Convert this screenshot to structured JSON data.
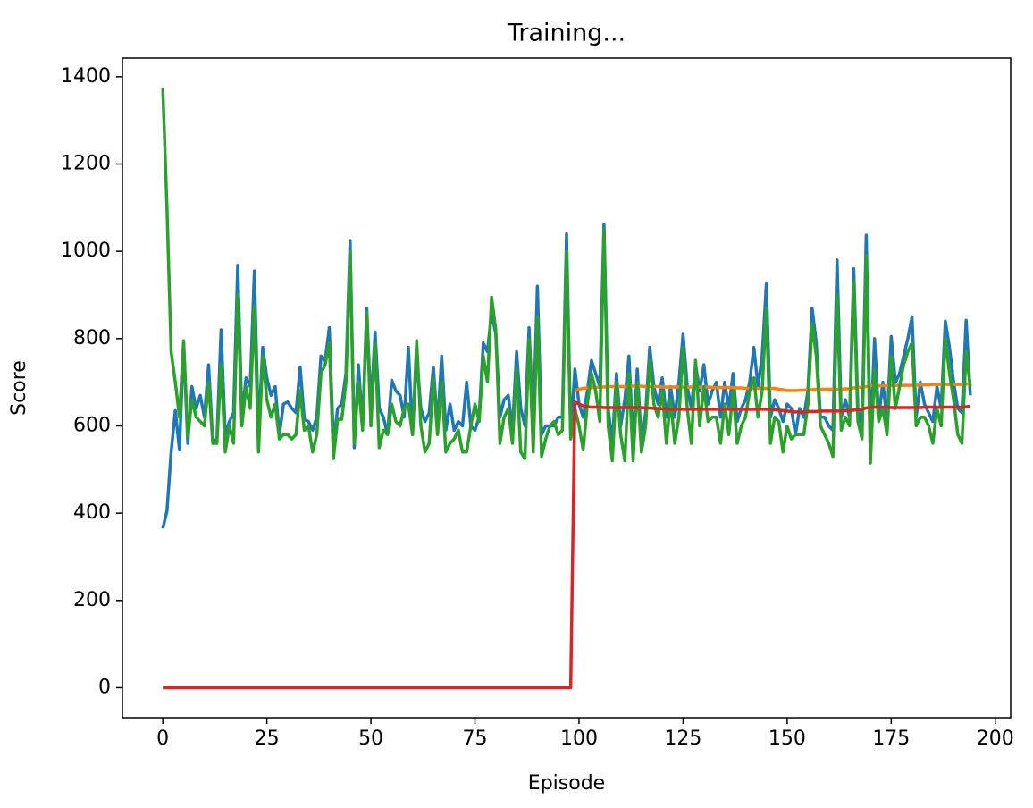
{
  "chart_data": {
    "type": "line",
    "title": "Training...",
    "x_label": "Episode",
    "y_label": "Score",
    "x": [
      0,
      1,
      2,
      3,
      4,
      5,
      6,
      7,
      8,
      9,
      10,
      11,
      12,
      13,
      14,
      15,
      16,
      17,
      18,
      19,
      20,
      21,
      22,
      23,
      24,
      25,
      26,
      27,
      28,
      29,
      30,
      31,
      32,
      33,
      34,
      35,
      36,
      37,
      38,
      39,
      40,
      41,
      42,
      43,
      44,
      45,
      46,
      47,
      48,
      49,
      50,
      51,
      52,
      53,
      54,
      55,
      56,
      57,
      58,
      59,
      60,
      61,
      62,
      63,
      64,
      65,
      66,
      67,
      68,
      69,
      70,
      71,
      72,
      73,
      74,
      75,
      76,
      77,
      78,
      79,
      80,
      81,
      82,
      83,
      84,
      85,
      86,
      87,
      88,
      89,
      90,
      91,
      92,
      93,
      94,
      95,
      96,
      97,
      98,
      99,
      100,
      101,
      102,
      103,
      104,
      105,
      106,
      107,
      108,
      109,
      110,
      111,
      112,
      113,
      114,
      115,
      116,
      117,
      118,
      119,
      120,
      121,
      122,
      123,
      124,
      125,
      126,
      127,
      128,
      129,
      130,
      131,
      132,
      133,
      134,
      135,
      136,
      137,
      138,
      139,
      140,
      141,
      142,
      143,
      144,
      145,
      146,
      147,
      148,
      149,
      150,
      151,
      152,
      153,
      154,
      155,
      156,
      157,
      158,
      159,
      160,
      161,
      162,
      163,
      164,
      165,
      166,
      167,
      168,
      169,
      170,
      171,
      172,
      173,
      174,
      175,
      176,
      177,
      178,
      179,
      180,
      181,
      182,
      183,
      184,
      185,
      186,
      187,
      188,
      189,
      190,
      191,
      192,
      193,
      194
    ],
    "series": [
      {
        "color": "#1f77b4",
        "values": [
          365,
          405,
          540,
          635,
          545,
          790,
          560,
          690,
          640,
          670,
          620,
          740,
          565,
          570,
          820,
          580,
          610,
          630,
          968,
          620,
          710,
          690,
          955,
          580,
          780,
          710,
          670,
          690,
          580,
          650,
          655,
          640,
          630,
          735,
          615,
          610,
          590,
          620,
          760,
          750,
          825,
          560,
          640,
          650,
          720,
          1025,
          550,
          740,
          600,
          870,
          640,
          815,
          640,
          620,
          580,
          705,
          680,
          670,
          620,
          780,
          580,
          760,
          640,
          610,
          630,
          735,
          600,
          760,
          590,
          650,
          590,
          610,
          600,
          700,
          600,
          590,
          620,
          790,
          770,
          860,
          810,
          620,
          660,
          670,
          590,
          770,
          640,
          600,
          825,
          600,
          920,
          580,
          600,
          600,
          600,
          620,
          620,
          1040,
          580,
          730,
          650,
          620,
          680,
          750,
          720,
          690,
          1062,
          640,
          560,
          720,
          600,
          660,
          760,
          560,
          730,
          560,
          630,
          780,
          690,
          650,
          710,
          620,
          690,
          620,
          700,
          810,
          690,
          640,
          740,
          680,
          740,
          650,
          680,
          700,
          620,
          700,
          640,
          720,
          610,
          640,
          660,
          700,
          780,
          690,
          760,
          925,
          620,
          660,
          640,
          610,
          650,
          640,
          580,
          640,
          620,
          680,
          870,
          790,
          620,
          620,
          600,
          590,
          980,
          620,
          660,
          620,
          960,
          640,
          600,
          1037,
          560,
          800,
          620,
          700,
          610,
          805,
          700,
          720,
          760,
          800,
          850,
          620,
          700,
          650,
          630,
          610,
          690,
          640,
          840,
          780,
          700,
          640,
          630,
          842,
          670
        ]
      },
      {
        "color": "#ff7f0e",
        "values": [
          null,
          null,
          null,
          null,
          null,
          null,
          null,
          null,
          null,
          null,
          null,
          null,
          null,
          null,
          null,
          null,
          null,
          null,
          null,
          null,
          null,
          null,
          null,
          null,
          null,
          null,
          null,
          null,
          null,
          null,
          null,
          null,
          null,
          null,
          null,
          null,
          null,
          null,
          null,
          null,
          null,
          null,
          null,
          null,
          null,
          null,
          null,
          null,
          null,
          null,
          null,
          null,
          null,
          null,
          null,
          null,
          null,
          null,
          null,
          null,
          null,
          null,
          null,
          null,
          null,
          null,
          null,
          null,
          null,
          null,
          null,
          null,
          null,
          null,
          null,
          null,
          null,
          null,
          null,
          null,
          null,
          null,
          null,
          null,
          null,
          null,
          null,
          null,
          null,
          null,
          null,
          null,
          null,
          null,
          null,
          null,
          null,
          null,
          null,
          680,
          684,
          686,
          687,
          688,
          688,
          689,
          689,
          690,
          690,
          690,
          690,
          690,
          691,
          691,
          691,
          691,
          690,
          690,
          690,
          690,
          689,
          689,
          689,
          689,
          689,
          689,
          689,
          689,
          689,
          689,
          689,
          689,
          688,
          688,
          688,
          688,
          688,
          688,
          687,
          687,
          686,
          686,
          686,
          686,
          686,
          686,
          686,
          686,
          684,
          683,
          681,
          681,
          681,
          682,
          682,
          683,
          683,
          684,
          684,
          684,
          684,
          684,
          684,
          684,
          685,
          685,
          687,
          688,
          689,
          690,
          692,
          692,
          692,
          692,
          692,
          693,
          693,
          693,
          693,
          693,
          693,
          693,
          694,
          694,
          694,
          695,
          695,
          695,
          695,
          695,
          695,
          695,
          695,
          696,
          696
        ]
      },
      {
        "color": "#2ca02c",
        "values": [
          1374,
          1100,
          770,
          700,
          620,
          795,
          575,
          660,
          620,
          610,
          600,
          700,
          560,
          560,
          740,
          540,
          600,
          560,
          900,
          600,
          690,
          640,
          875,
          540,
          760,
          660,
          620,
          650,
          570,
          580,
          580,
          570,
          580,
          680,
          590,
          600,
          540,
          580,
          720,
          740,
          790,
          525,
          615,
          615,
          700,
          1000,
          560,
          700,
          590,
          860,
          600,
          790,
          550,
          590,
          580,
          650,
          610,
          600,
          640,
          650,
          580,
          795,
          600,
          540,
          560,
          710,
          580,
          700,
          540,
          560,
          570,
          590,
          540,
          540,
          600,
          650,
          610,
          760,
          700,
          895,
          820,
          560,
          620,
          640,
          560,
          730,
          540,
          525,
          800,
          540,
          850,
          530,
          570,
          600,
          610,
          580,
          590,
          1000,
          570,
          640,
          600,
          545,
          650,
          720,
          680,
          610,
          1050,
          600,
          520,
          700,
          580,
          520,
          720,
          520,
          700,
          540,
          600,
          750,
          650,
          620,
          680,
          560,
          660,
          560,
          620,
          780,
          640,
          560,
          750,
          600,
          690,
          610,
          620,
          620,
          560,
          650,
          580,
          680,
          560,
          600,
          620,
          680,
          710,
          620,
          680,
          870,
          560,
          620,
          610,
          540,
          600,
          570,
          580,
          580,
          580,
          650,
          835,
          760,
          600,
          580,
          560,
          530,
          900,
          590,
          620,
          600,
          930,
          610,
          570,
          990,
          515,
          730,
          610,
          640,
          580,
          760,
          640,
          690,
          740,
          770,
          790,
          600,
          620,
          620,
          600,
          560,
          640,
          600,
          800,
          720,
          660,
          580,
          560,
          770,
          690
        ]
      },
      {
        "color": "#d62728",
        "values": [
          0,
          0,
          0,
          0,
          0,
          0,
          0,
          0,
          0,
          0,
          0,
          0,
          0,
          0,
          0,
          0,
          0,
          0,
          0,
          0,
          0,
          0,
          0,
          0,
          0,
          0,
          0,
          0,
          0,
          0,
          0,
          0,
          0,
          0,
          0,
          0,
          0,
          0,
          0,
          0,
          0,
          0,
          0,
          0,
          0,
          0,
          0,
          0,
          0,
          0,
          0,
          0,
          0,
          0,
          0,
          0,
          0,
          0,
          0,
          0,
          0,
          0,
          0,
          0,
          0,
          0,
          0,
          0,
          0,
          0,
          0,
          0,
          0,
          0,
          0,
          0,
          0,
          0,
          0,
          0,
          0,
          0,
          0,
          0,
          0,
          0,
          0,
          0,
          0,
          0,
          0,
          0,
          0,
          0,
          0,
          0,
          0,
          0,
          0,
          655,
          650,
          646,
          644,
          643,
          643,
          643,
          642,
          642,
          642,
          642,
          642,
          642,
          642,
          642,
          642,
          642,
          641,
          641,
          640,
          640,
          639,
          639,
          638,
          638,
          638,
          638,
          638,
          638,
          638,
          638,
          638,
          638,
          638,
          638,
          638,
          638,
          638,
          638,
          638,
          638,
          638,
          638,
          638,
          638,
          638,
          638,
          637,
          637,
          636,
          635,
          634,
          633,
          632,
          632,
          632,
          633,
          633,
          633,
          634,
          634,
          634,
          634,
          634,
          634,
          635,
          635,
          636,
          637,
          638,
          641,
          643,
          643,
          643,
          643,
          643,
          642,
          642,
          642,
          642,
          642,
          642,
          642,
          642,
          643,
          643,
          643,
          643,
          643,
          643,
          643,
          643,
          643,
          643,
          644,
          645
        ]
      }
    ],
    "xlim": [
      -9.7,
      203.7
    ],
    "xticks": [
      0,
      25,
      50,
      75,
      100,
      125,
      150,
      175,
      200
    ],
    "ylim": [
      -68.7,
      1442.7
    ],
    "yticks": [
      0,
      200,
      400,
      600,
      800,
      1000,
      1200,
      1400
    ],
    "grid": false
  }
}
